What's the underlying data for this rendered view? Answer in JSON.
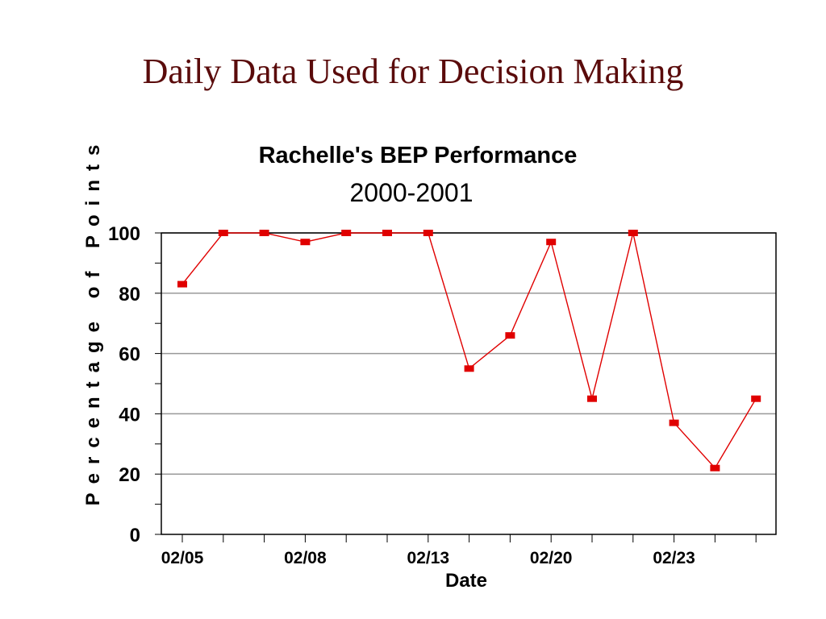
{
  "slide": {
    "title": "Daily Data Used for Decision Making"
  },
  "colors": {
    "title": "#5a0b0b",
    "series": "#e00000",
    "grid": "#999999",
    "axis": "#000000"
  },
  "chart_data": {
    "type": "line",
    "title": "Rachelle's BEP Performance",
    "subtitle": "2000-2001",
    "xlabel": "Date",
    "ylabel": "Percentage of Points",
    "ylim": [
      0,
      100
    ],
    "y_ticks": [
      0,
      20,
      40,
      60,
      80,
      100
    ],
    "grid": true,
    "x_tick_labels": [
      {
        "index": 0,
        "label": "02/05"
      },
      {
        "index": 3,
        "label": "02/08"
      },
      {
        "index": 6,
        "label": "02/13"
      },
      {
        "index": 9,
        "label": "02/20"
      },
      {
        "index": 12,
        "label": "02/23"
      }
    ],
    "series": [
      {
        "marker": "square",
        "values": [
          83,
          100,
          100,
          97,
          100,
          100,
          100,
          55,
          66,
          97,
          45,
          100,
          37,
          22,
          45
        ]
      }
    ]
  }
}
